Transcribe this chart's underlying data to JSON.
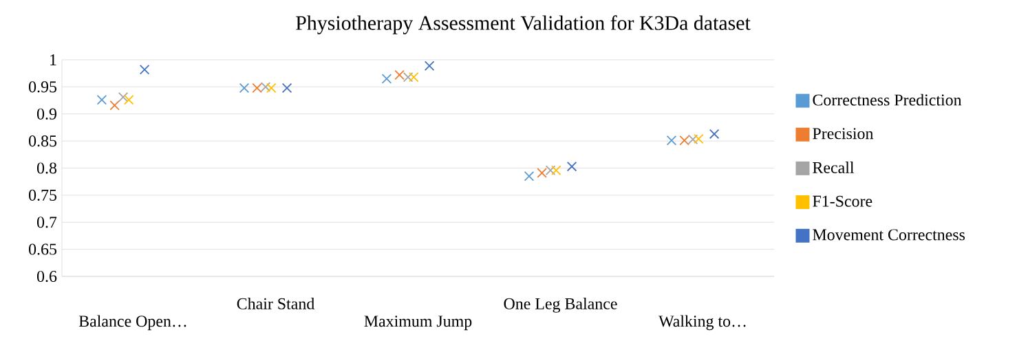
{
  "chart_data": {
    "type": "scatter",
    "title": "Physiotherapy Assessment Validation for K3Da dataset",
    "categories": [
      "Balance Open…",
      "Chair Stand",
      "Maximum Jump",
      "One Leg Balance",
      "Walking to…"
    ],
    "series": [
      {
        "name": "Correctness Prediction",
        "color": "#5b9bd5",
        "values": [
          0.926,
          0.948,
          0.965,
          0.785,
          0.851
        ]
      },
      {
        "name": "Precision",
        "color": "#ed7d31",
        "values": [
          0.916,
          0.948,
          0.972,
          0.791,
          0.851
        ]
      },
      {
        "name": "Recall",
        "color": "#a5a5a5",
        "values": [
          0.931,
          0.95,
          0.968,
          0.796,
          0.853
        ]
      },
      {
        "name": "F1-Score",
        "color": "#ffc000",
        "values": [
          0.926,
          0.948,
          0.968,
          0.796,
          0.854
        ]
      },
      {
        "name": "Movement Correctness",
        "color": "#4472c4",
        "values": [
          0.982,
          0.948,
          0.989,
          0.803,
          0.863
        ]
      }
    ],
    "ylim": [
      0.6,
      1
    ],
    "yticks": [
      0.6,
      0.65,
      0.7,
      0.75,
      0.8,
      0.85,
      0.9,
      0.95,
      1
    ],
    "grid": "y",
    "legend": "right",
    "marker": "cross"
  }
}
